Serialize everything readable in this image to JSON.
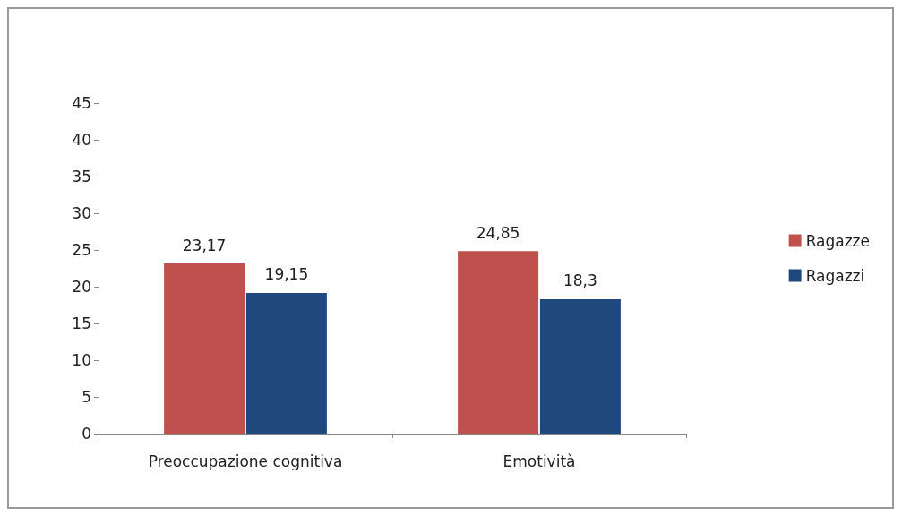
{
  "chart_data": {
    "type": "bar",
    "categories": [
      "Preoccupazione cognitiva",
      "Emotività"
    ],
    "series": [
      {
        "name": "Ragazze",
        "color": "#c0504d",
        "values": [
          23.17,
          24.85
        ],
        "value_labels": [
          "23,17",
          "24,85"
        ]
      },
      {
        "name": "Ragazzi",
        "color": "#1f497d",
        "values": [
          19.15,
          18.3
        ],
        "value_labels": [
          "19,15",
          "18,3"
        ]
      }
    ],
    "ylim": [
      0,
      45
    ],
    "yticks": [
      0,
      5,
      10,
      15,
      20,
      25,
      30,
      35,
      40,
      45
    ],
    "grid": false,
    "legend": "right"
  }
}
